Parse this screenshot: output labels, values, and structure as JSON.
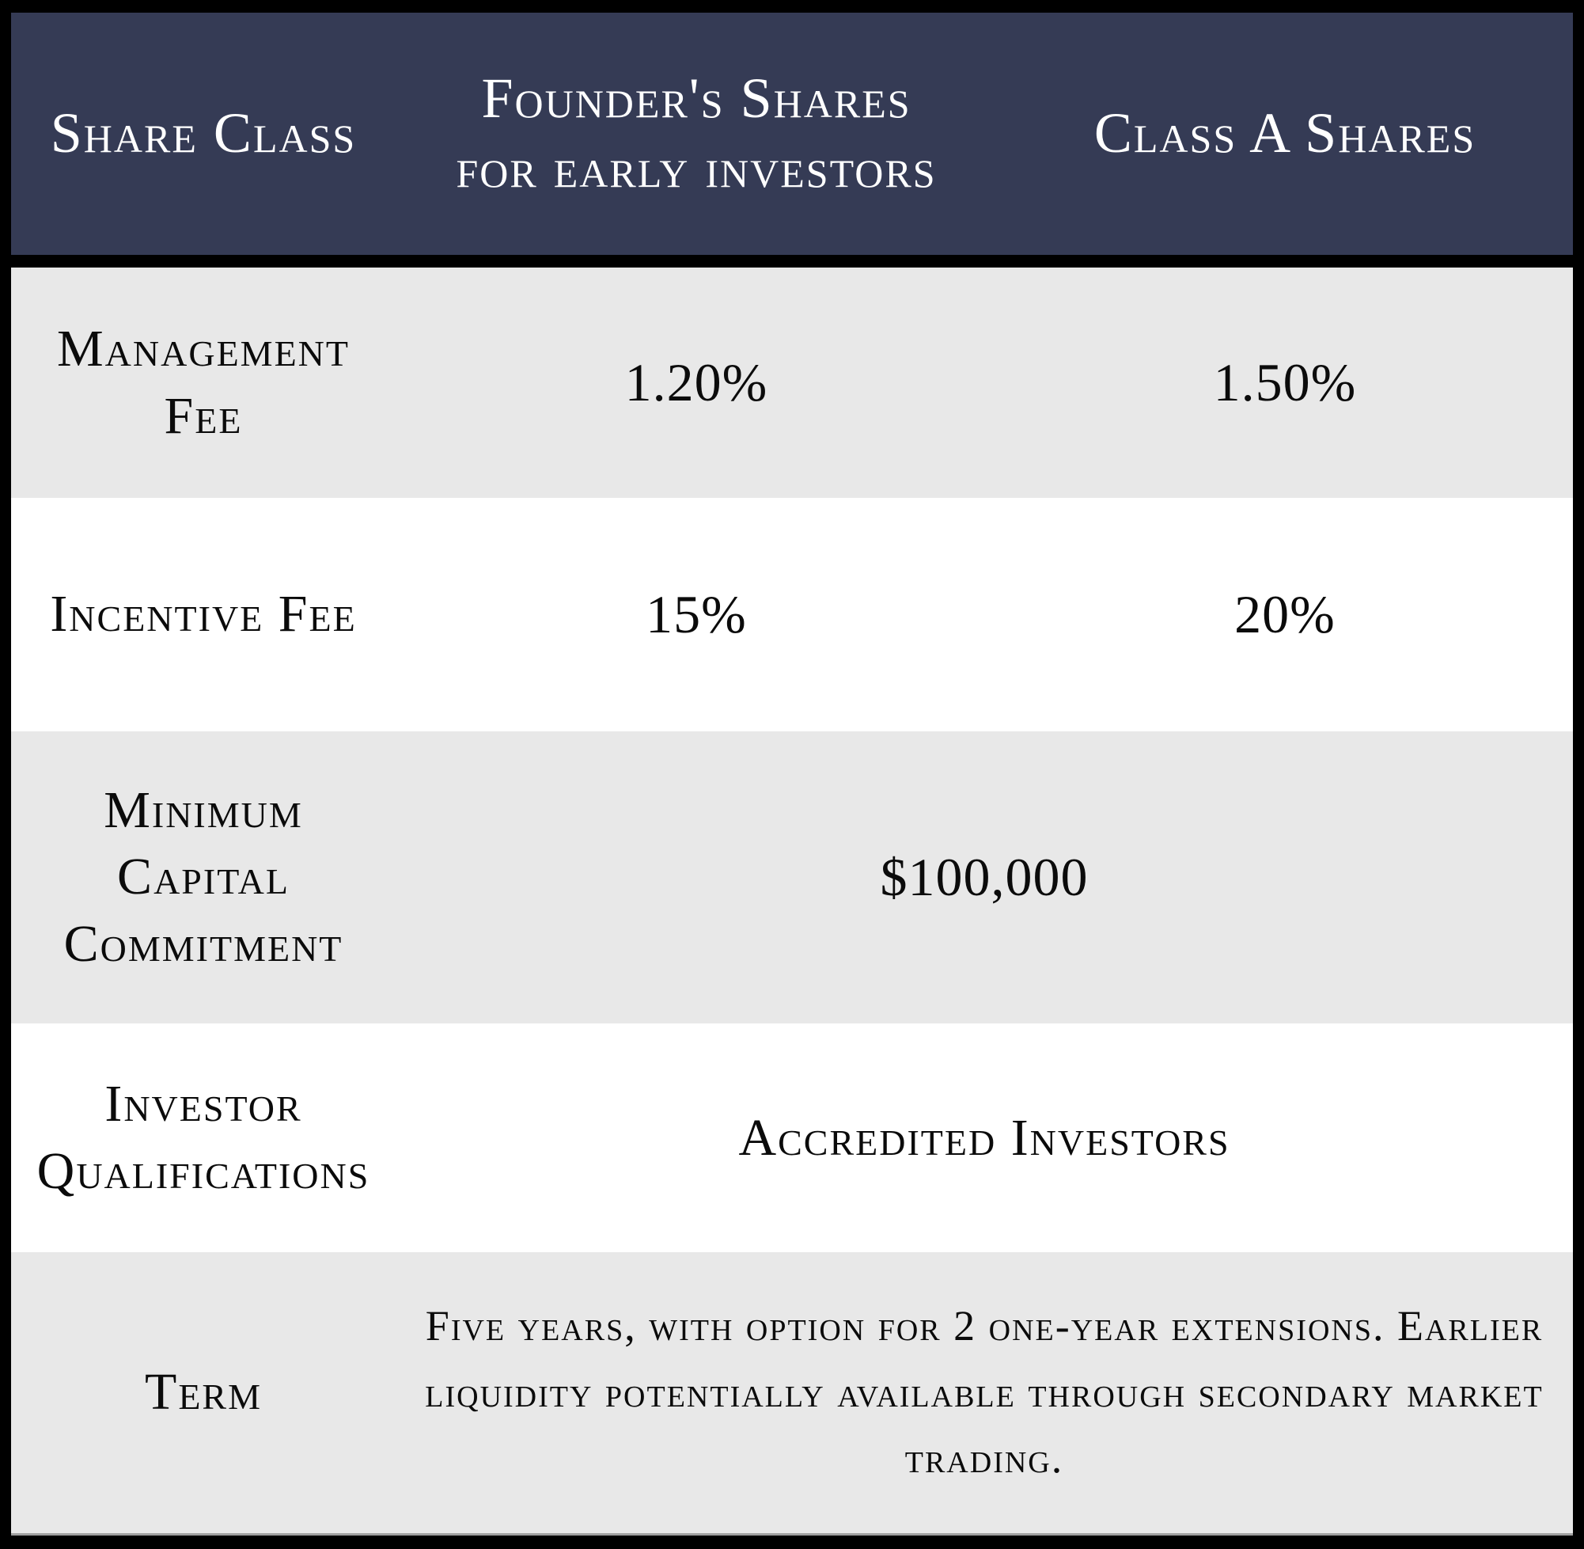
{
  "header": {
    "share_class": "Share Class",
    "founders_line1": "Founder's Shares",
    "founders_line2": "for early investors",
    "class_a": "Class A Shares"
  },
  "rows": {
    "management_fee": {
      "label": "Management Fee",
      "founders_value": "1.20%",
      "class_a_value": "1.50%"
    },
    "incentive_fee": {
      "label": "Incentive Fee",
      "founders_value": "15%",
      "class_a_value": "20%"
    },
    "minimum_capital_commitment": {
      "label": "Minimum Capital Commitment",
      "value": "$100,000"
    },
    "investor_qualifications": {
      "label": "Investor Qualifications",
      "value": "Accredited Investors"
    },
    "term": {
      "label": "Term",
      "value": "Five years, with option for 2 one-year extensions. Earlier liquidity potentially available through secondary market trading."
    }
  },
  "colors": {
    "header_bg": "#353B55",
    "header_text": "#FFFFFF",
    "row_alt_bg": "#E8E8E8",
    "row_bg": "#FFFFFF",
    "body_text": "#0B0B0B",
    "border": "#000000"
  }
}
